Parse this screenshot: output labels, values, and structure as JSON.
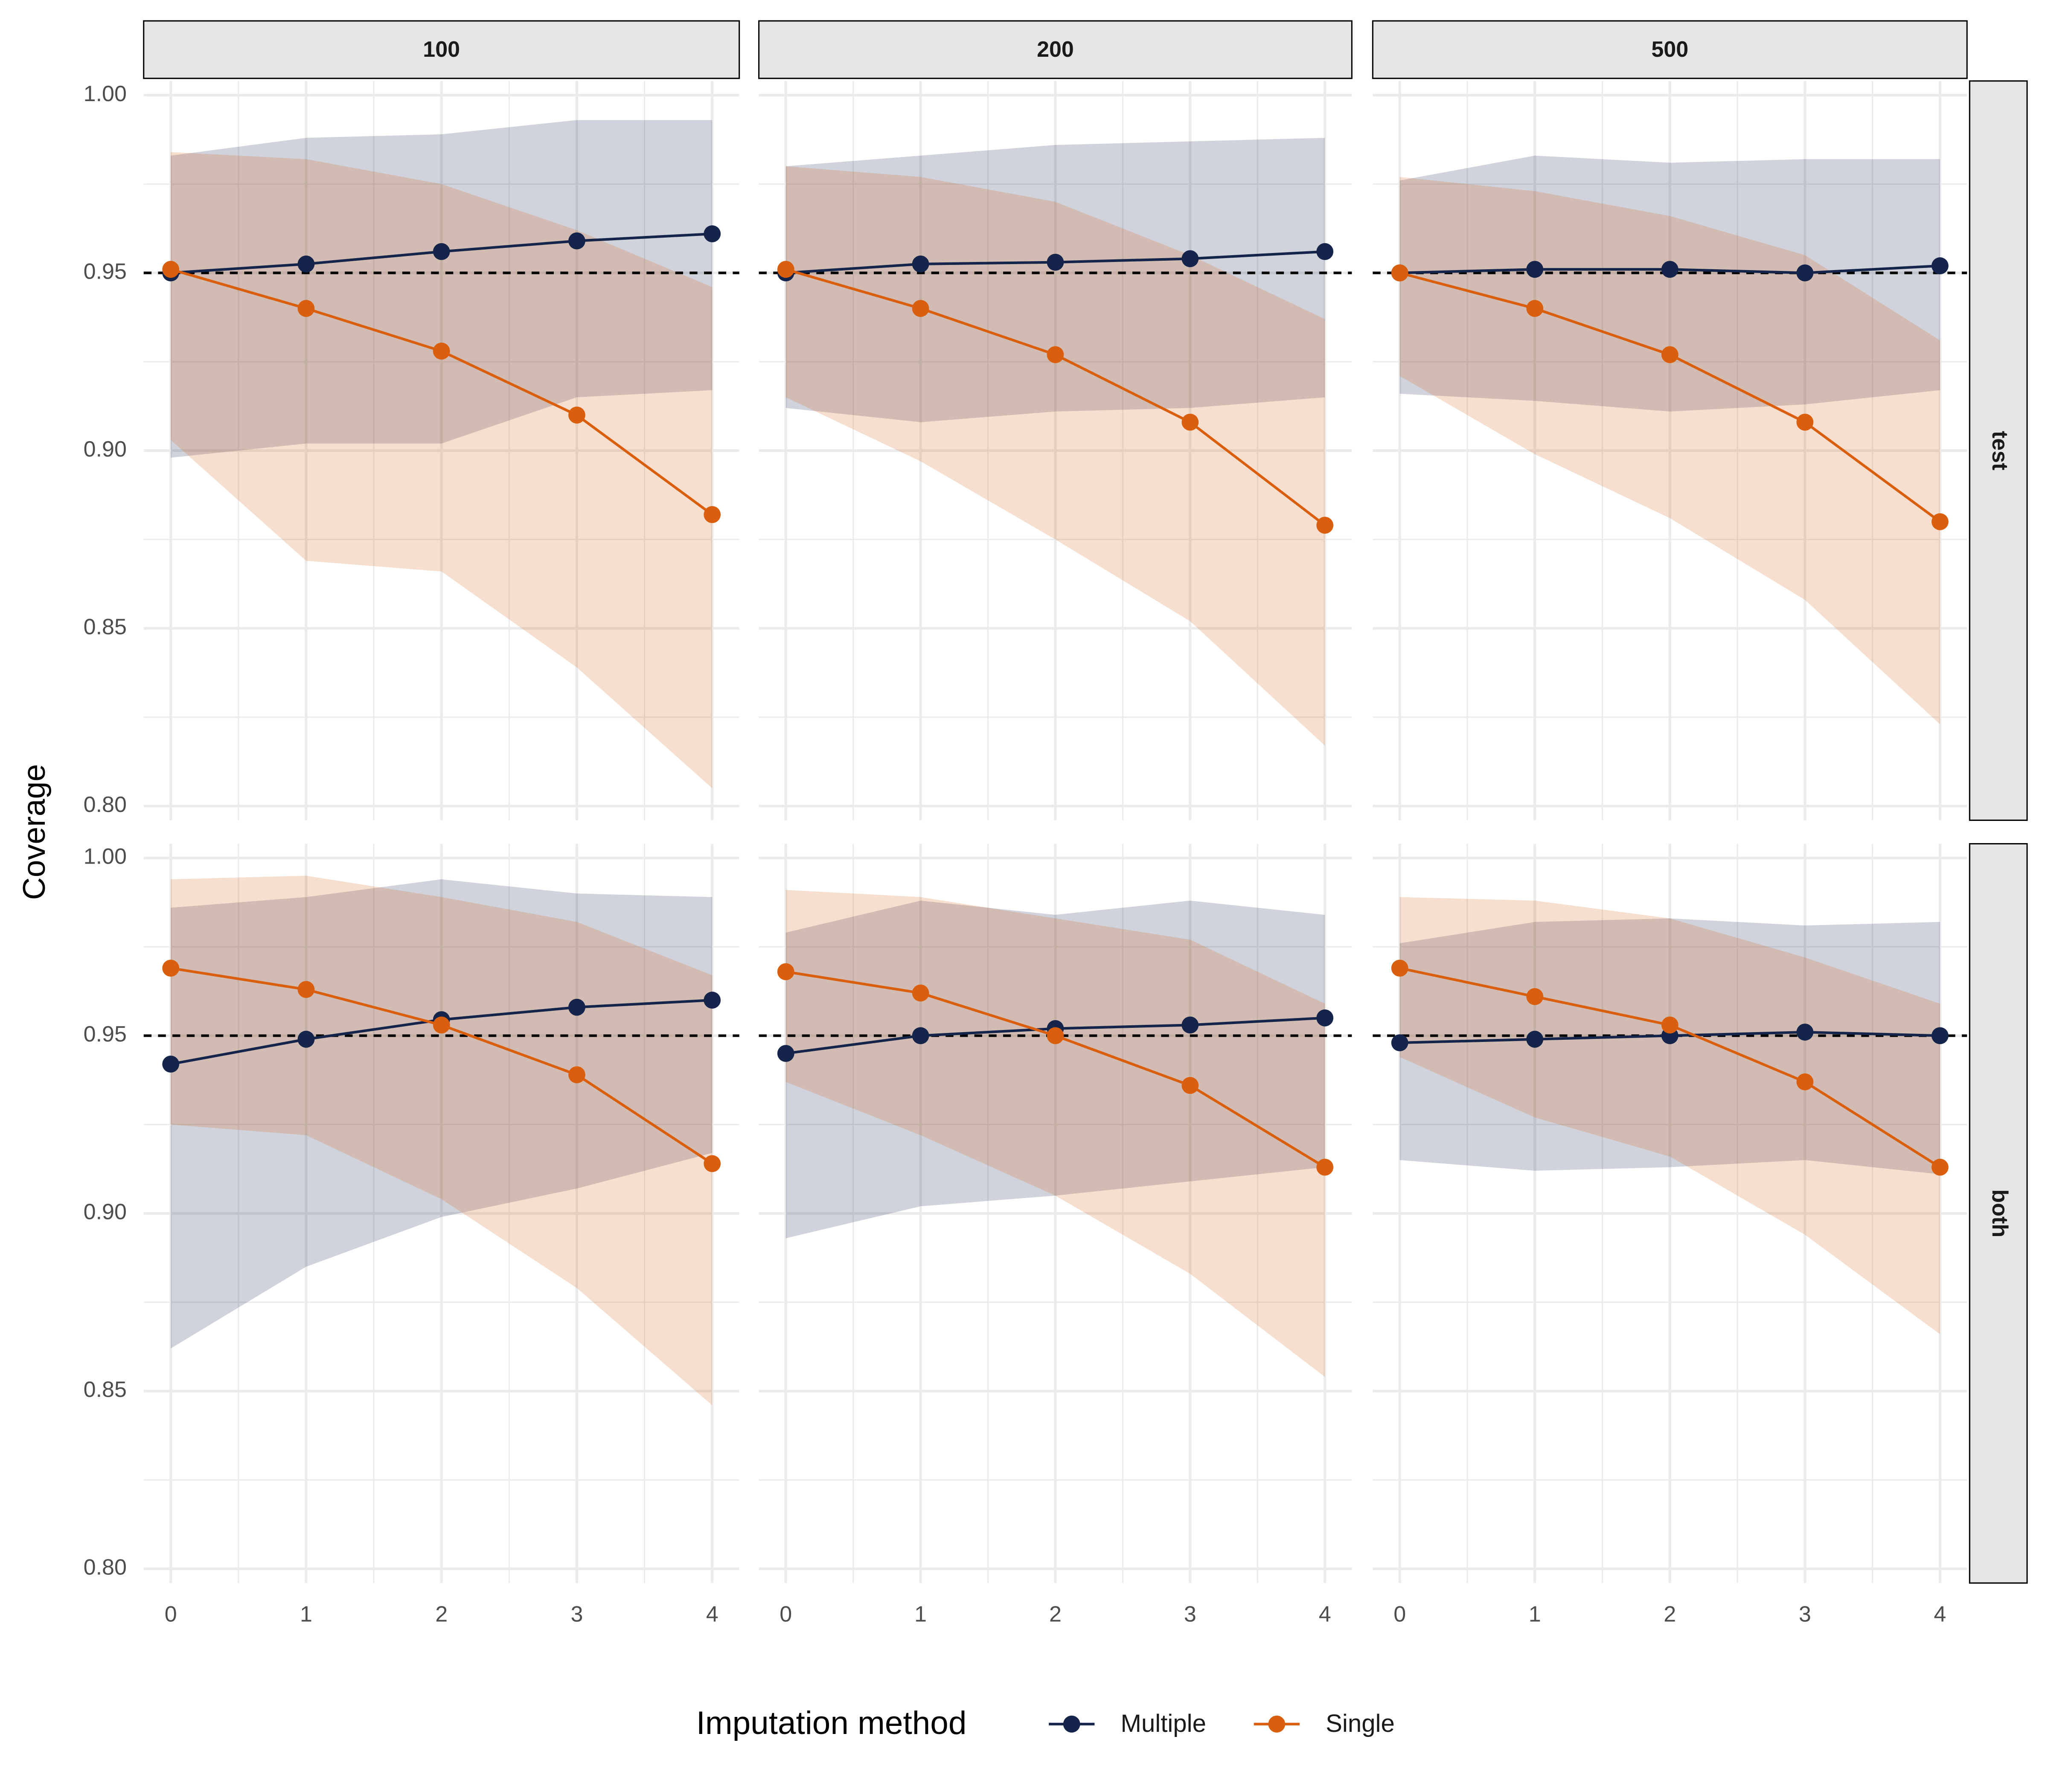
{
  "chart_data": {
    "type": "line",
    "y_label": "Coverage",
    "legend_title": "Imputation method",
    "columns": [
      "100",
      "200",
      "500"
    ],
    "rows": [
      "test",
      "both"
    ],
    "x": [
      0,
      1,
      2,
      3,
      4
    ],
    "xlim": [
      -0.2,
      4.2
    ],
    "xticks": [
      0,
      1,
      2,
      3,
      4
    ],
    "xminor": [
      0.5,
      1.5,
      2.5,
      3.5
    ],
    "ylim": [
      0.796,
      1.004
    ],
    "yticks": [
      {
        "value": 0.8,
        "label": "0.80"
      },
      0.85,
      {
        "value": 0.9,
        "label": "0.90"
      },
      0.95,
      {
        "value": 1.0,
        "label": "1.00"
      }
    ],
    "yminor": [
      0.825,
      0.875,
      0.925,
      0.975
    ],
    "grid": true,
    "hline": 0.95,
    "legend_position": "bottom",
    "series": [
      {
        "name": "Multiple",
        "color": "#14244a"
      },
      {
        "name": "Single",
        "color": "#d95f0e"
      }
    ],
    "panels": [
      {
        "lines": [
          {
            "values": [
              0.95,
              0.9525,
              0.956,
              0.959,
              0.961
            ],
            "upper": [
              0.983,
              0.988,
              0.989,
              0.993,
              0.993
            ],
            "lower": [
              0.898,
              0.902,
              0.902,
              0.915,
              0.917
            ]
          },
          {
            "values": [
              0.951,
              0.94,
              0.928,
              0.91,
              0.882
            ],
            "upper": [
              0.984,
              0.982,
              0.975,
              0.962,
              0.946
            ],
            "lower": [
              0.903,
              0.869,
              0.866,
              0.839,
              0.805
            ]
          }
        ]
      },
      {
        "lines": [
          {
            "values": [
              0.95,
              0.9525,
              0.953,
              0.954,
              0.956
            ],
            "upper": [
              0.98,
              0.983,
              0.986,
              0.987,
              0.988
            ],
            "lower": [
              0.912,
              0.908,
              0.911,
              0.912,
              0.915
            ]
          },
          {
            "values": [
              0.951,
              0.94,
              0.927,
              0.908,
              0.879
            ],
            "upper": [
              0.98,
              0.977,
              0.97,
              0.955,
              0.937
            ],
            "lower": [
              0.915,
              0.897,
              0.875,
              0.852,
              0.817
            ]
          }
        ]
      },
      {
        "lines": [
          {
            "values": [
              0.95,
              0.951,
              0.951,
              0.95,
              0.952
            ],
            "upper": [
              0.976,
              0.983,
              0.981,
              0.982,
              0.982
            ],
            "lower": [
              0.916,
              0.914,
              0.911,
              0.913,
              0.917
            ]
          },
          {
            "values": [
              0.95,
              0.94,
              0.927,
              0.908,
              0.88
            ],
            "upper": [
              0.977,
              0.973,
              0.966,
              0.955,
              0.931
            ],
            "lower": [
              0.921,
              0.899,
              0.881,
              0.858,
              0.823
            ]
          }
        ]
      },
      {
        "lines": [
          {
            "values": [
              0.942,
              0.949,
              0.9545,
              0.958,
              0.96
            ],
            "upper": [
              0.986,
              0.989,
              0.994,
              0.99,
              0.989
            ],
            "lower": [
              0.862,
              0.885,
              0.899,
              0.907,
              0.917
            ]
          },
          {
            "values": [
              0.969,
              0.963,
              0.953,
              0.939,
              0.914
            ],
            "upper": [
              0.994,
              0.995,
              0.989,
              0.982,
              0.967
            ],
            "lower": [
              0.925,
              0.922,
              0.904,
              0.879,
              0.846
            ]
          }
        ]
      },
      {
        "lines": [
          {
            "values": [
              0.945,
              0.95,
              0.952,
              0.953,
              0.955
            ],
            "upper": [
              0.979,
              0.988,
              0.984,
              0.988,
              0.984
            ],
            "lower": [
              0.893,
              0.902,
              0.905,
              0.909,
              0.913
            ]
          },
          {
            "values": [
              0.968,
              0.962,
              0.95,
              0.936,
              0.913
            ],
            "upper": [
              0.991,
              0.989,
              0.983,
              0.977,
              0.959
            ],
            "lower": [
              0.937,
              0.922,
              0.905,
              0.883,
              0.854
            ]
          }
        ]
      },
      {
        "lines": [
          {
            "values": [
              0.948,
              0.949,
              0.95,
              0.951,
              0.95
            ],
            "upper": [
              0.976,
              0.982,
              0.983,
              0.981,
              0.982
            ],
            "lower": [
              0.915,
              0.912,
              0.913,
              0.915,
              0.911
            ]
          },
          {
            "values": [
              0.969,
              0.961,
              0.953,
              0.937,
              0.913
            ],
            "upper": [
              0.989,
              0.988,
              0.983,
              0.972,
              0.959
            ],
            "lower": [
              0.944,
              0.927,
              0.916,
              0.894,
              0.866
            ]
          }
        ]
      }
    ]
  }
}
